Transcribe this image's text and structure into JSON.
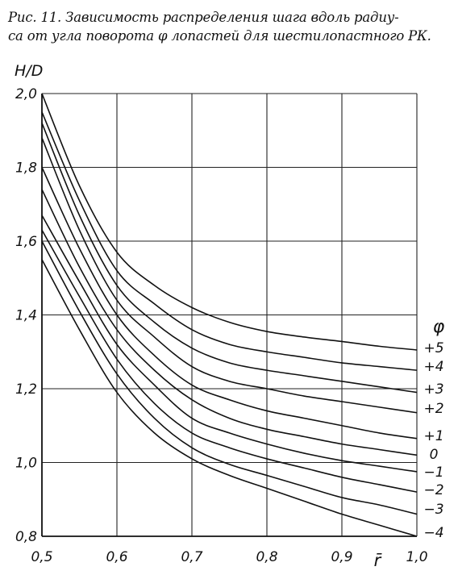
{
  "caption": {
    "line1": "Рис. 11. Зависимость распределения шага вдоль радиу-",
    "line2": "са от угла поворота φ лопастей для шестилопастного РК."
  },
  "chart_data": {
    "type": "line",
    "ylabel": "H/D",
    "xlabel": "r̄",
    "legend_title": "φ",
    "xlim": [
      0.5,
      1.0
    ],
    "ylim": [
      0.8,
      2.0
    ],
    "x_ticks": [
      "0,5",
      "0,6",
      "0,7",
      "0,8",
      "0,9",
      "1,0"
    ],
    "y_ticks": [
      "0,8",
      "1,0",
      "1,2",
      "1,4",
      "1,6",
      "1,8",
      "2,0"
    ],
    "grid": true,
    "x": [
      0.5,
      0.55,
      0.6,
      0.65,
      0.7,
      0.75,
      0.8,
      0.85,
      0.9,
      0.95,
      1.0
    ],
    "series": [
      {
        "name": "+5",
        "values": [
          2.0,
          1.75,
          1.57,
          1.48,
          1.42,
          1.38,
          1.355,
          1.34,
          1.328,
          1.315,
          1.305
        ]
      },
      {
        "name": "+4",
        "values": [
          1.95,
          1.71,
          1.52,
          1.43,
          1.36,
          1.32,
          1.3,
          1.285,
          1.27,
          1.26,
          1.25
        ]
      },
      {
        "name": "+3",
        "values": [
          1.92,
          1.67,
          1.48,
          1.38,
          1.31,
          1.27,
          1.25,
          1.235,
          1.22,
          1.205,
          1.19
        ]
      },
      {
        "name": "+2",
        "values": [
          1.88,
          1.63,
          1.44,
          1.34,
          1.26,
          1.22,
          1.2,
          1.18,
          1.165,
          1.15,
          1.135
        ]
      },
      {
        "name": "+1",
        "values": [
          1.8,
          1.58,
          1.4,
          1.29,
          1.21,
          1.17,
          1.14,
          1.12,
          1.1,
          1.08,
          1.065
        ]
      },
      {
        "name": "0",
        "values": [
          1.74,
          1.53,
          1.36,
          1.25,
          1.17,
          1.12,
          1.09,
          1.07,
          1.05,
          1.035,
          1.02
        ]
      },
      {
        "name": "−1",
        "values": [
          1.67,
          1.49,
          1.32,
          1.21,
          1.12,
          1.08,
          1.05,
          1.025,
          1.005,
          0.99,
          0.975
        ]
      },
      {
        "name": "−2",
        "values": [
          1.63,
          1.45,
          1.28,
          1.16,
          1.08,
          1.04,
          1.01,
          0.985,
          0.96,
          0.94,
          0.92
        ]
      },
      {
        "name": "−3",
        "values": [
          1.6,
          1.41,
          1.24,
          1.12,
          1.04,
          0.995,
          0.965,
          0.935,
          0.905,
          0.885,
          0.86
        ]
      },
      {
        "name": "−4",
        "values": [
          1.55,
          1.36,
          1.19,
          1.08,
          1.01,
          0.965,
          0.93,
          0.895,
          0.86,
          0.83,
          0.8
        ]
      }
    ]
  }
}
